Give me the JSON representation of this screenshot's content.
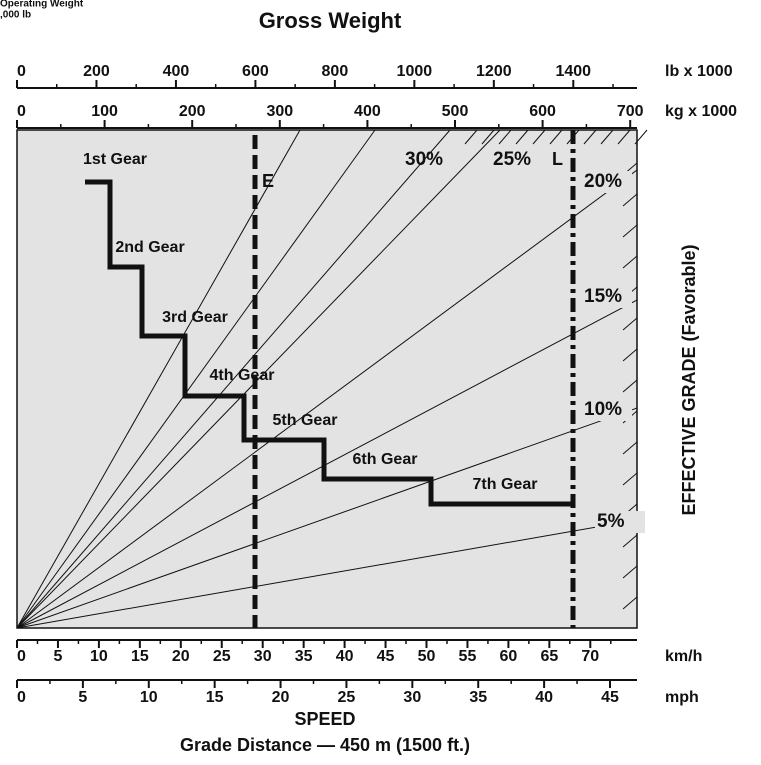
{
  "title": "Gross Weight",
  "corner_note": [
    "Operating Weight",
    ",000 lb"
  ],
  "top_axes": [
    {
      "unit": "lb x 1000",
      "ticks": [
        "0",
        "200",
        "400",
        "600",
        "800",
        "1000",
        "1200",
        "1400"
      ]
    },
    {
      "unit": "kg x 1000",
      "ticks": [
        "0",
        "100",
        "200",
        "300",
        "400",
        "500",
        "600",
        "700"
      ]
    }
  ],
  "bottom_axes": [
    {
      "unit": "km/h",
      "ticks": [
        "0",
        "5",
        "10",
        "15",
        "20",
        "25",
        "30",
        "35",
        "40",
        "45",
        "50",
        "55",
        "60",
        "65",
        "70"
      ]
    },
    {
      "unit": "mph",
      "ticks": [
        "0",
        "5",
        "10",
        "15",
        "20",
        "25",
        "30",
        "35",
        "40",
        "45"
      ]
    }
  ],
  "grades": [
    "30%",
    "25%",
    "20%",
    "15%",
    "10%",
    "5%"
  ],
  "gears": [
    "1st Gear",
    "2nd Gear",
    "3rd Gear",
    "4th Gear",
    "5th Gear",
    "6th Gear",
    "7th Gear"
  ],
  "markers": [
    "E",
    "L"
  ],
  "y_axis_label": "EFFECTIVE GRADE (Favorable)",
  "x_axis_label": "SPEED",
  "footer": "Grade Distance — 450 m (1500 ft.)"
}
